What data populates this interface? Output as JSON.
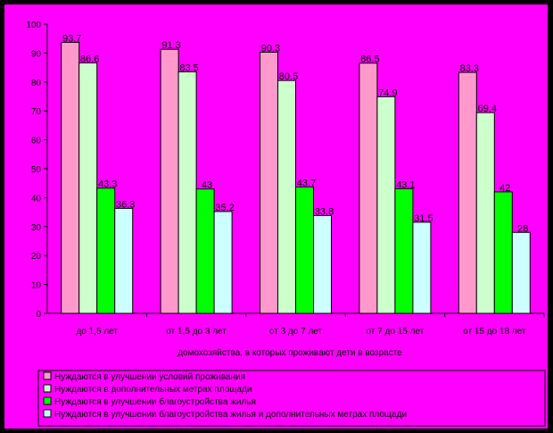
{
  "chart_data": {
    "type": "bar",
    "title": "",
    "xlabel": "домохозяйства, в которых проживают дети в возрасте",
    "ylabel": "",
    "ylim": [
      0,
      100
    ],
    "yticks": [
      0,
      10,
      20,
      30,
      40,
      50,
      60,
      70,
      80,
      90,
      100
    ],
    "categories": [
      "до 1,5 лет",
      "от 1,5 до 3 лет",
      "от 3 до 7 лет",
      "от 7 до 15 лет",
      "от 15 до 18 лет"
    ],
    "series": [
      {
        "name": "Нуждаются в улучшении условий проживания",
        "color": "#ff99cc",
        "values": [
          93.7,
          91.3,
          90.3,
          86.5,
          83.3
        ],
        "labels": [
          "93.7",
          "91.3",
          "90.3",
          "86.5",
          "83.3"
        ]
      },
      {
        "name": "Нуждаются в дополнительных метрах площади",
        "color": "#ccffcc",
        "values": [
          86.6,
          83.5,
          80.5,
          74.9,
          69.4
        ],
        "labels": [
          "86.6",
          "83.5",
          "80.5",
          "74.9",
          "69.4"
        ]
      },
      {
        "name": "Нуждаются в улучшении благоустройства жилья",
        "color": "#00ff00",
        "values": [
          43.3,
          43,
          43.7,
          43.1,
          42
        ],
        "labels": [
          "43.3",
          "43",
          "43.7",
          "43.1",
          "42"
        ]
      },
      {
        "name": "Нуждаются в улучшении благоустройства жилья и дополнительных метрах площади",
        "color": "#ccffff",
        "values": [
          36.3,
          35.2,
          33.8,
          31.5,
          28
        ],
        "labels": [
          "36.3",
          "35.2",
          "33.8",
          "31.5",
          "28"
        ]
      }
    ],
    "grid": false,
    "legend_position": "bottom"
  }
}
